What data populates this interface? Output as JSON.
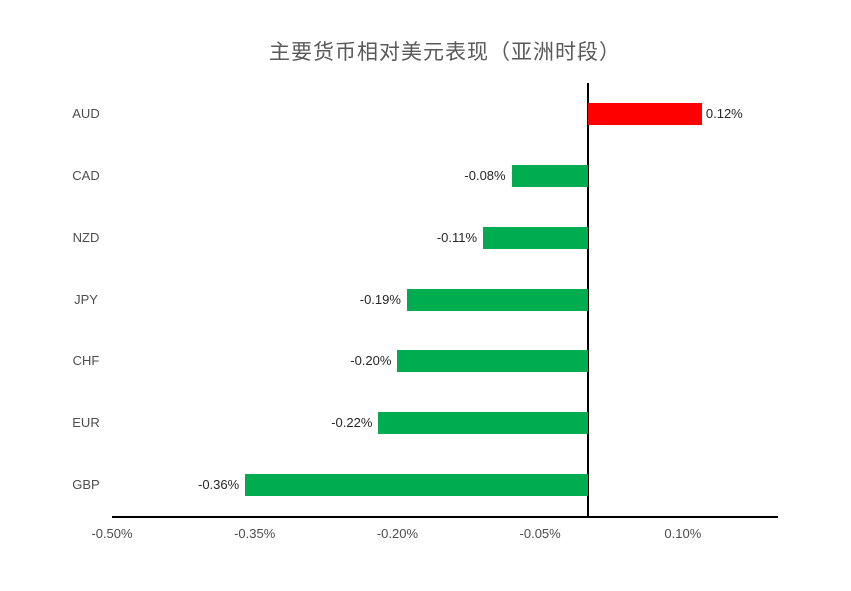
{
  "chart_data": {
    "type": "bar",
    "orientation": "horizontal",
    "title": "主要货币相对美元表现（亚洲时段）",
    "categories": [
      "AUD",
      "CAD",
      "NZD",
      "JPY",
      "CHF",
      "EUR",
      "GBP"
    ],
    "values": [
      0.12,
      -0.08,
      -0.11,
      -0.19,
      -0.2,
      -0.22,
      -0.36
    ],
    "value_labels": [
      "0.12%",
      "-0.08%",
      "-0.11%",
      "-0.19%",
      "-0.20%",
      "-0.22%",
      "-0.36%"
    ],
    "xlabel": "",
    "ylabel": "",
    "xlim": [
      -0.5,
      0.2
    ],
    "xtick_labels": [
      "-0.50%",
      "-0.35%",
      "-0.20%",
      "-0.05%",
      "0.10%"
    ],
    "xtick_values": [
      -0.5,
      -0.35,
      -0.2,
      -0.05,
      0.1
    ],
    "grid": false,
    "legend": false,
    "colors": {
      "positive_bar": "#FF0000",
      "negative_bar": "#00AC50",
      "axis_line": "#000000",
      "title_text": "#595959",
      "tick_text": "#4d4d4d",
      "data_label_text": "#262626",
      "background": "#FFFFFF"
    }
  }
}
